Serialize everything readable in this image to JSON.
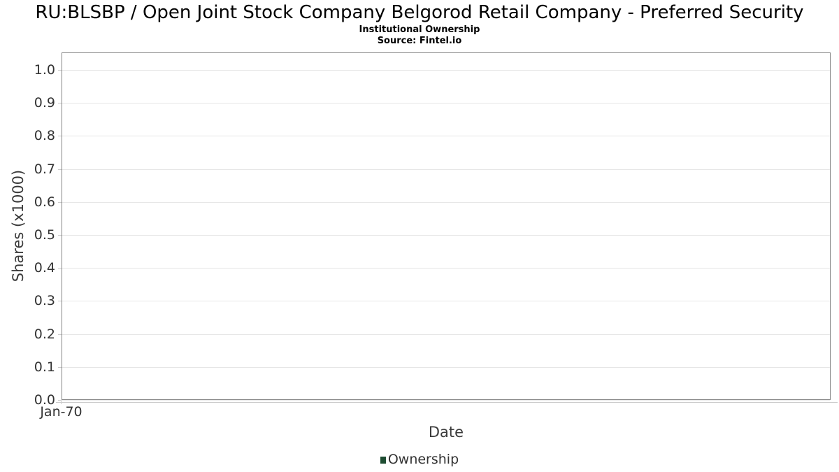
{
  "chart_data": {
    "type": "line",
    "title": "RU:BLSBP / Open Joint Stock Company Belgorod Retail Company - Preferred Security",
    "subtitle": "Institutional Ownership",
    "source": "Source: Fintel.io",
    "xlabel": "Date",
    "ylabel": "Shares (x1000)",
    "x_ticks": [
      "Jan-70"
    ],
    "y_ticks": [
      "0.0",
      "0.1",
      "0.2",
      "0.3",
      "0.4",
      "0.5",
      "0.6",
      "0.7",
      "0.8",
      "0.9",
      "1.0"
    ],
    "ylim": [
      0,
      1.05
    ],
    "grid": true,
    "legend_position": "bottom",
    "series": [
      {
        "name": "Ownership",
        "color": "#1e4d32",
        "x": [],
        "values": []
      }
    ]
  },
  "colors": {
    "plot_border": "#848484",
    "gridline": "#e6e6e6",
    "tick": "#cccccc",
    "tick_label": "#333333",
    "axis_title": "#3a3a3a",
    "title_text": "#000000",
    "series_ownership": "#1e4d32"
  }
}
